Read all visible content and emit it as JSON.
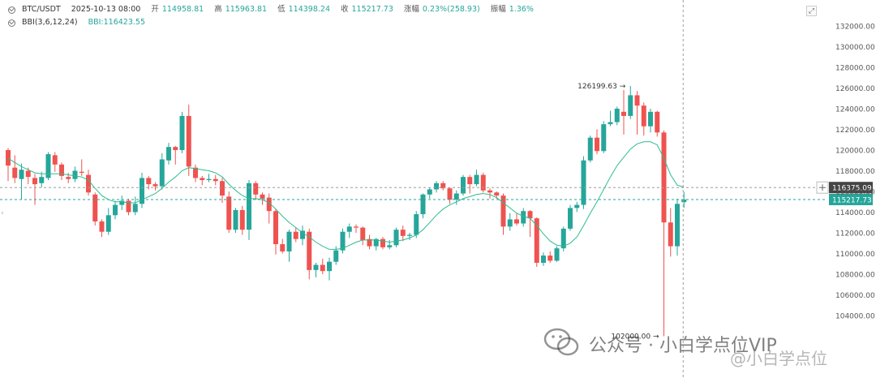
{
  "header": {
    "symbol": "BTC/USDT",
    "datetime": "2025-10-13 08:00",
    "open_label": "开",
    "open": "114958.81",
    "high_label": "高",
    "high": "115963.81",
    "low_label": "低",
    "low": "114398.24",
    "close_label": "收",
    "close": "115217.73",
    "change_label": "涨幅",
    "change": "0.23%(258.93)",
    "amp_label": "振幅",
    "amp": "1.36%",
    "indicator": "BBI(3,6,12,24)",
    "indicator_value": "BBI:116423.55"
  },
  "colors": {
    "up": "#26a69a",
    "down": "#ef5350",
    "bbi": "#2bbd8f",
    "price_line": "#26a69a",
    "crosshair": "#9e9e9e",
    "axis_text": "#555555"
  },
  "icons": {
    "header_toggle": "eye-icon",
    "top_right": "fullscreen-icon",
    "crosshair_add": "plus-icon"
  },
  "chart_data": {
    "type": "candlestick",
    "ylim": [
      101000,
      133500
    ],
    "yticks": [
      104000,
      106000,
      108000,
      110000,
      112000,
      114000,
      116000,
      118000,
      120000,
      122000,
      124000,
      126000,
      128000,
      130000,
      132000
    ],
    "ytick_labels": [
      "104000.00",
      "106000.00",
      "108000.00",
      "110000.00",
      "112000.00",
      "114000.00",
      "116000.00",
      "118000.00",
      "120000.00",
      "122000.00",
      "124000.00",
      "126000.00",
      "128000.00",
      "130000.00",
      "132000.00"
    ],
    "candles": [
      [
        120000,
        118500,
        120200,
        117000
      ],
      [
        118300,
        117300,
        119500,
        116800
      ],
      [
        117200,
        118100,
        118700,
        115200
      ],
      [
        118000,
        117400,
        118300,
        116700
      ],
      [
        117300,
        116700,
        117700,
        114700
      ],
      [
        116800,
        117400,
        117900,
        116400
      ],
      [
        117300,
        119600,
        119800,
        117100
      ],
      [
        119500,
        118600,
        119800,
        117900
      ],
      [
        118600,
        117500,
        118800,
        117100
      ],
      [
        117400,
        117200,
        117800,
        116800
      ],
      [
        117200,
        118000,
        118400,
        116900
      ],
      [
        117900,
        117800,
        119100,
        117500
      ],
      [
        117600,
        115900,
        118100,
        115600
      ],
      [
        115700,
        113100,
        115900,
        112700
      ],
      [
        113100,
        112100,
        113300,
        111600
      ],
      [
        112100,
        113700,
        114400,
        111800
      ],
      [
        113700,
        114700,
        115100,
        113300
      ],
      [
        114700,
        115100,
        115600,
        114200
      ],
      [
        115100,
        114000,
        115300,
        113700
      ],
      [
        114000,
        114800,
        115500,
        113700
      ],
      [
        114800,
        117300,
        117800,
        114400
      ],
      [
        117300,
        116700,
        117500,
        116200
      ],
      [
        116700,
        116500,
        116900,
        116100
      ],
      [
        116500,
        119100,
        119700,
        116200
      ],
      [
        119000,
        120300,
        120700,
        118600
      ],
      [
        120300,
        120000,
        120400,
        118600
      ],
      [
        120000,
        123300,
        123700,
        119700
      ],
      [
        123300,
        118400,
        124400,
        117500
      ],
      [
        118300,
        117300,
        118600,
        116900
      ],
      [
        117300,
        117100,
        117500,
        116600
      ],
      [
        117100,
        117200,
        117700,
        116900
      ],
      [
        117200,
        117000,
        117600,
        116600
      ],
      [
        117000,
        115600,
        117300,
        114900
      ],
      [
        115500,
        112300,
        116000,
        112000
      ],
      [
        112300,
        114200,
        114400,
        112000
      ],
      [
        114200,
        112300,
        114600,
        111800
      ],
      [
        112300,
        116800,
        117100,
        111300
      ],
      [
        116800,
        115700,
        117000,
        115200
      ],
      [
        115700,
        115300,
        115900,
        114700
      ],
      [
        115400,
        114100,
        115800,
        112900
      ],
      [
        114100,
        110900,
        114300,
        109900
      ],
      [
        110900,
        110200,
        111400,
        110000
      ],
      [
        110200,
        112100,
        112300,
        109200
      ],
      [
        112100,
        111400,
        112500,
        111100
      ],
      [
        111400,
        112200,
        112700,
        110800
      ],
      [
        112100,
        108400,
        112400,
        107500
      ],
      [
        108400,
        108900,
        109100,
        107700
      ],
      [
        108900,
        108300,
        109500,
        108000
      ],
      [
        108300,
        109200,
        109600,
        107400
      ],
      [
        109200,
        110300,
        110700,
        108900
      ],
      [
        110300,
        112100,
        112400,
        110000
      ],
      [
        112100,
        112600,
        112900,
        111500
      ],
      [
        112600,
        112500,
        112800,
        112000
      ],
      [
        112500,
        111300,
        112600,
        110800
      ],
      [
        111400,
        110700,
        111800,
        110400
      ],
      [
        110700,
        111400,
        111500,
        110300
      ],
      [
        111400,
        110600,
        111600,
        110400
      ],
      [
        110600,
        110800,
        111300,
        110400
      ],
      [
        110800,
        112300,
        112500,
        110600
      ],
      [
        112300,
        111700,
        112700,
        111200
      ],
      [
        111700,
        111800,
        112000,
        111300
      ],
      [
        111800,
        113800,
        114100,
        111500
      ],
      [
        113800,
        115700,
        115800,
        113400
      ],
      [
        115700,
        116200,
        116400,
        115300
      ],
      [
        116200,
        116800,
        117000,
        115900
      ],
      [
        116800,
        116300,
        117000,
        116100
      ],
      [
        116300,
        115200,
        116400,
        114800
      ],
      [
        115200,
        115800,
        116100,
        114700
      ],
      [
        115800,
        117400,
        117600,
        115600
      ],
      [
        117400,
        116700,
        117600,
        115800
      ],
      [
        116700,
        117600,
        118100,
        116500
      ],
      [
        117600,
        116100,
        117800,
        115900
      ],
      [
        116100,
        115900,
        116300,
        115300
      ],
      [
        115900,
        115600,
        116000,
        115300
      ],
      [
        115600,
        112600,
        115800,
        111800
      ],
      [
        112600,
        113300,
        113900,
        112200
      ],
      [
        113300,
        112900,
        113900,
        112700
      ],
      [
        112900,
        114100,
        114400,
        112600
      ],
      [
        114100,
        113400,
        114200,
        111600
      ],
      [
        113400,
        109100,
        113500,
        108700
      ],
      [
        109100,
        109800,
        110100,
        108800
      ],
      [
        109800,
        109300,
        110200,
        109100
      ],
      [
        109300,
        110500,
        110700,
        109200
      ],
      [
        110500,
        112400,
        112600,
        110200
      ],
      [
        112400,
        114400,
        114700,
        112200
      ],
      [
        114400,
        114700,
        115000,
        114000
      ],
      [
        114700,
        119000,
        119400,
        114300
      ],
      [
        119000,
        121200,
        121400,
        118800
      ],
      [
        121200,
        119900,
        122000,
        119600
      ],
      [
        119900,
        122500,
        122800,
        119700
      ],
      [
        122500,
        122700,
        123800,
        122300
      ],
      [
        122700,
        124000,
        124200,
        122400
      ],
      [
        123700,
        123300,
        125800,
        121500
      ],
      [
        123300,
        125300,
        126199.63,
        123000
      ],
      [
        125300,
        124300,
        125700,
        121500
      ],
      [
        124300,
        122300,
        124600,
        121400
      ],
      [
        122300,
        123700,
        124000,
        121700
      ],
      [
        123700,
        121700,
        123800,
        121300
      ],
      [
        121700,
        113000,
        121900,
        102000
      ],
      [
        113000,
        110700,
        114400,
        109700
      ],
      [
        110700,
        114800,
        115300,
        109800
      ],
      [
        114958.81,
        115217.73,
        115963.81,
        114398.24
      ]
    ],
    "bbi": [
      119200,
      118800,
      118400,
      118100,
      117800,
      117700,
      117700,
      117700,
      117700,
      117600,
      117500,
      117400,
      117100,
      116300,
      115600,
      115200,
      115000,
      115000,
      114900,
      114900,
      115200,
      115500,
      115800,
      116300,
      116900,
      117400,
      118000,
      118300,
      118200,
      118100,
      118000,
      117800,
      117400,
      116700,
      116100,
      115600,
      115300,
      115300,
      115200,
      114900,
      114300,
      113600,
      113000,
      112500,
      112000,
      111600,
      111100,
      110700,
      110400,
      110400,
      110500,
      110800,
      111100,
      111300,
      111300,
      111300,
      111200,
      111100,
      111200,
      111300,
      111500,
      111800,
      112300,
      113000,
      113700,
      114300,
      114700,
      115000,
      115300,
      115500,
      115700,
      115800,
      115700,
      115400,
      114900,
      114400,
      113900,
      113600,
      113400,
      112700,
      111900,
      111200,
      110800,
      110700,
      111000,
      111600,
      112700,
      113900,
      115000,
      116200,
      117400,
      118500,
      119300,
      120100,
      120600,
      120800,
      120800,
      120500,
      119200,
      117600,
      116600,
      116423.55
    ],
    "annotations": [
      {
        "label": "126199.63",
        "value": 126199.63,
        "candle_index": 93
      },
      {
        "label": "102000.00",
        "value": 102000.0,
        "candle_index": 98
      }
    ],
    "crosshair_value": 116375.09,
    "crosshair_label": "116375.09",
    "last_price_label": "115217.73"
  },
  "watermark": {
    "text": "公众号 · 小白学点位VIP",
    "text2": "@小白学点位"
  }
}
